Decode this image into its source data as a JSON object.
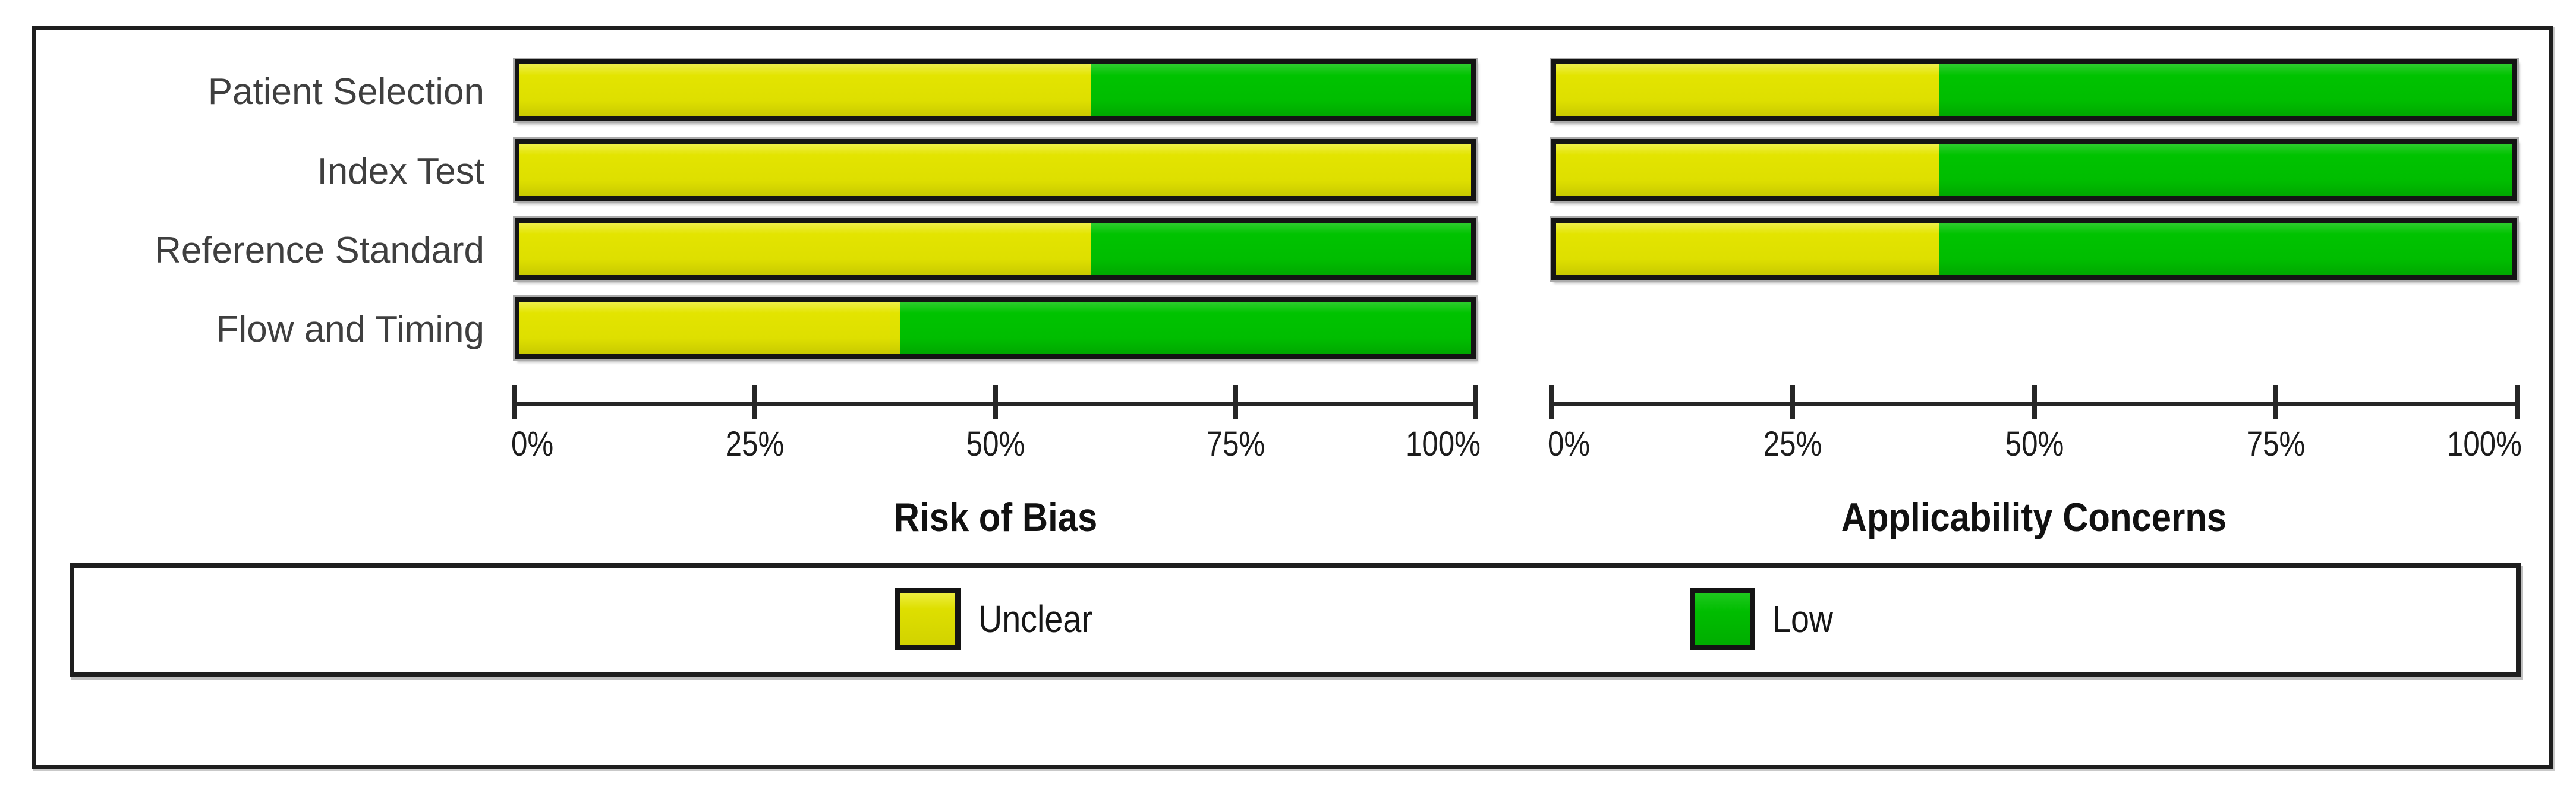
{
  "figure": {
    "kind": "methodological-quality-graph",
    "colors": {
      "unclear": "#dedf00",
      "low": "#00bd00",
      "frame_border": "#1e1e1e",
      "bar_border": "#141414",
      "axis": "#262626"
    },
    "legend": {
      "items": [
        {
          "label": "Unclear",
          "color": "#dedf00"
        },
        {
          "label": "Low",
          "color": "#00bd00"
        }
      ],
      "position": "bottom-box"
    }
  },
  "chart_data": [
    {
      "type": "bar",
      "orientation": "horizontal-stacked",
      "title": "Risk of Bias",
      "categories": [
        "Patient Selection",
        "Index Test",
        "Reference Standard",
        "Flow and Timing"
      ],
      "series": [
        {
          "name": "Unclear",
          "color": "unclear",
          "values": [
            60,
            100,
            60,
            40
          ]
        },
        {
          "name": "Low",
          "color": "low",
          "values": [
            40,
            0,
            40,
            60
          ]
        }
      ],
      "xlim": [
        0,
        100
      ],
      "xticks": [
        "0%",
        "25%",
        "50%",
        "75%",
        "100%"
      ],
      "grid": false,
      "unit": "percent"
    },
    {
      "type": "bar",
      "orientation": "horizontal-stacked",
      "title": "Applicability Concerns",
      "categories": [
        "Patient Selection",
        "Index Test",
        "Reference Standard"
      ],
      "series": [
        {
          "name": "Unclear",
          "color": "unclear",
          "values": [
            40,
            40,
            40
          ]
        },
        {
          "name": "Low",
          "color": "low",
          "values": [
            60,
            60,
            60
          ]
        }
      ],
      "xlim": [
        0,
        100
      ],
      "xticks": [
        "0%",
        "25%",
        "50%",
        "75%",
        "100%"
      ],
      "grid": false,
      "unit": "percent"
    }
  ]
}
